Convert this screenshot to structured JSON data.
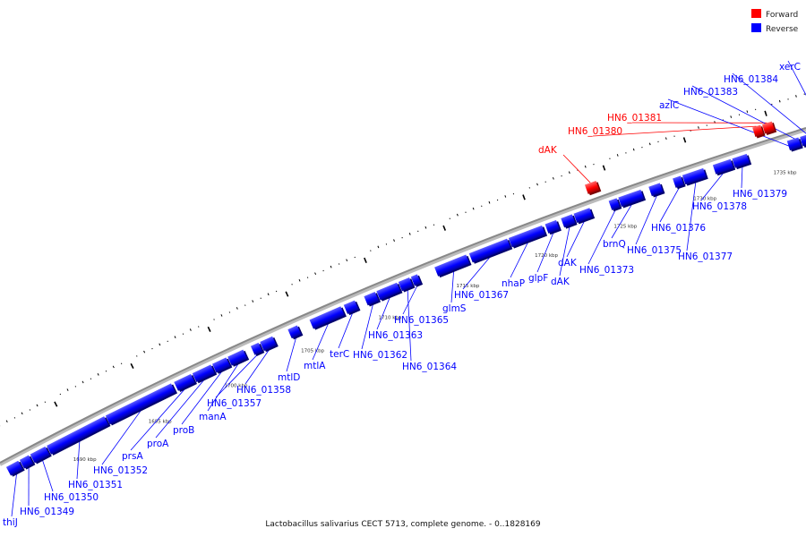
{
  "caption": "Lactobacillus salivarius CECT 5713, complete genome. - 0..1828169",
  "legend": [
    {
      "label": "Forward",
      "color": "#ff0000"
    },
    {
      "label": "Reverse",
      "color": "#0000ff"
    }
  ],
  "colors": {
    "forward": "#ff0000",
    "reverse": "#0000ff",
    "backbone": "#888888"
  },
  "scale": {
    "kbp_start": 1685.5,
    "kbp_end": 1737,
    "tick_labels": [
      "1690 kbp",
      "1695 kbp",
      "1700 kbp",
      "1705 kbp",
      "1710 kbp",
      "1715 kbp",
      "1720 kbp",
      "1725 kbp",
      "1730 kbp",
      "1735 kbp"
    ],
    "tick_values": [
      1690,
      1695,
      1700,
      1705,
      1710,
      1715,
      1720,
      1725,
      1730,
      1735
    ]
  },
  "genes": [
    {
      "name": "thiJ",
      "strand": "reverse",
      "start": 1685.7,
      "end": 1686.5
    },
    {
      "name": "HN6_01349",
      "strand": "reverse",
      "start": 1686.6,
      "end": 1687.2
    },
    {
      "name": "HN6_01350",
      "strand": "reverse",
      "start": 1687.3,
      "end": 1688.3
    },
    {
      "name": "HN6_01351",
      "strand": "reverse",
      "start": 1688.4,
      "end": 1692.2
    },
    {
      "name": "HN6_01352",
      "strand": "reverse",
      "start": 1692.3,
      "end": 1696.6
    },
    {
      "name": "prsA",
      "strand": "reverse",
      "start": 1696.8,
      "end": 1697.9
    },
    {
      "name": "proA",
      "strand": "reverse",
      "start": 1698.0,
      "end": 1699.2
    },
    {
      "name": "proB",
      "strand": "reverse",
      "start": 1699.3,
      "end": 1700.2
    },
    {
      "name": "manA",
      "strand": "reverse",
      "start": 1700.3,
      "end": 1701.3
    },
    {
      "name": "HN6_01357",
      "strand": "reverse",
      "start": 1701.8,
      "end": 1702.3
    },
    {
      "name": "HN6_01358",
      "strand": "reverse",
      "start": 1702.4,
      "end": 1703.2
    },
    {
      "name": "mtlD",
      "strand": "reverse",
      "start": 1704.2,
      "end": 1704.8
    },
    {
      "name": "mtlA",
      "strand": "reverse",
      "start": 1705.6,
      "end": 1707.6
    },
    {
      "name": "terC",
      "strand": "reverse",
      "start": 1707.8,
      "end": 1708.5
    },
    {
      "name": "HN6_01362",
      "strand": "reverse",
      "start": 1709.1,
      "end": 1709.8
    },
    {
      "name": "HN6_01363",
      "strand": "reverse",
      "start": 1709.9,
      "end": 1711.2
    },
    {
      "name": "HN6_01364",
      "strand": "reverse",
      "start": 1711.3,
      "end": 1712.0
    },
    {
      "name": "HN6_01365",
      "strand": "reverse",
      "start": 1712.1,
      "end": 1712.5
    },
    {
      "name": "glmS",
      "strand": "reverse",
      "start": 1713.6,
      "end": 1715.6
    },
    {
      "name": "HN6_01367",
      "strand": "reverse",
      "start": 1715.8,
      "end": 1718.2
    },
    {
      "name": "nhaP",
      "strand": "reverse",
      "start": 1718.3,
      "end": 1720.4
    },
    {
      "name": "glpF",
      "strand": "reverse",
      "start": 1720.6,
      "end": 1721.3
    },
    {
      "name": "dAK",
      "strand": "reverse",
      "start": 1721.6,
      "end": 1722.3
    },
    {
      "name": "dAK",
      "strand": "reverse",
      "start": 1722.4,
      "end": 1723.4
    },
    {
      "name": "dAK",
      "strand": "forward",
      "start": 1723.6,
      "end": 1724.3
    },
    {
      "name": "HN6_01373",
      "strand": "reverse",
      "start": 1724.6,
      "end": 1725.1
    },
    {
      "name": "brnQ",
      "strand": "reverse",
      "start": 1725.2,
      "end": 1726.6
    },
    {
      "name": "HN6_01375",
      "strand": "reverse",
      "start": 1727.1,
      "end": 1727.8
    },
    {
      "name": "HN6_01376",
      "strand": "reverse",
      "start": 1728.6,
      "end": 1729.1
    },
    {
      "name": "HN6_01377",
      "strand": "reverse",
      "start": 1729.2,
      "end": 1730.5
    },
    {
      "name": "HN6_01378",
      "strand": "reverse",
      "start": 1731.1,
      "end": 1732.2
    },
    {
      "name": "HN6_01379",
      "strand": "reverse",
      "start": 1732.3,
      "end": 1733.2
    },
    {
      "name": "HN6_01380",
      "strand": "forward",
      "start": 1734.0,
      "end": 1734.5
    },
    {
      "name": "HN6_01381",
      "strand": "forward",
      "start": 1734.6,
      "end": 1735.2
    },
    {
      "name": "azlC",
      "strand": "reverse",
      "start": 1735.7,
      "end": 1736.4
    },
    {
      "name": "HN6_01383",
      "strand": "reverse",
      "start": 1736.5,
      "end": 1737.0
    },
    {
      "name": "HN6_01384",
      "strand": "reverse",
      "start": 1737.1,
      "end": 1737.6
    },
    {
      "name": "xerC",
      "strand": "reverse",
      "start": 1737.7,
      "end": 1738.5
    }
  ]
}
